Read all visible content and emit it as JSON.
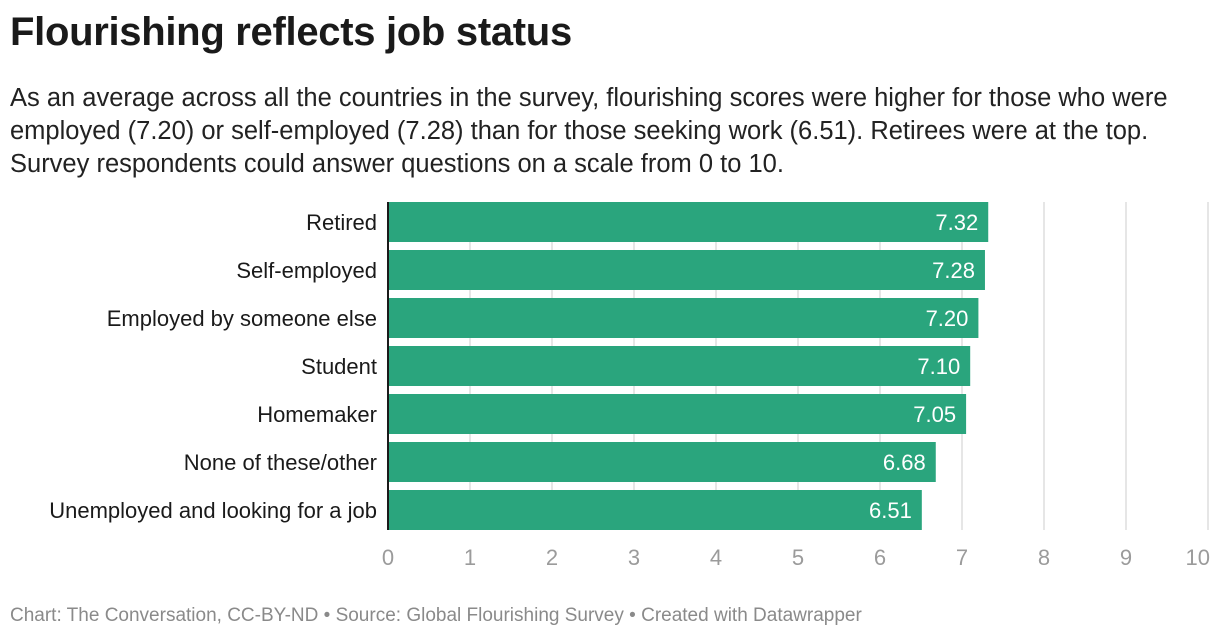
{
  "title": "Flourishing reflects job status",
  "subtitle": "As an average across all the countries in the survey, flourishing scores were higher for those who were employed (7.20) or self-employed (7.28) than for those seeking work (6.51). Retirees were at the top. Survey respondents could answer questions on a scale from 0 to 10.",
  "footer": {
    "chart_credit": "Chart: The Conversation, CC-BY-ND",
    "separator": " • ",
    "source": "Source: Global Flourishing Survey",
    "created_with": "Created with Datawrapper"
  },
  "chart_data": {
    "type": "bar",
    "orientation": "horizontal",
    "categories": [
      "Retired",
      "Self-employed",
      "Employed by someone else",
      "Student",
      "Homemaker",
      "None of these/other",
      "Unemployed and looking for a job"
    ],
    "values": [
      7.32,
      7.28,
      7.2,
      7.1,
      7.05,
      6.68,
      6.51
    ],
    "value_labels": [
      "7.32",
      "7.28",
      "7.20",
      "7.10",
      "7.05",
      "6.68",
      "6.51"
    ],
    "xlim": [
      0,
      10
    ],
    "xticks": [
      "0",
      "1",
      "2",
      "3",
      "4",
      "5",
      "6",
      "7",
      "8",
      "9",
      "10"
    ],
    "grid": true,
    "colors": {
      "bar": "#2aa57d",
      "grid": "#dedede",
      "tick": "#9b9b9b",
      "axis": "#1a1a1a"
    }
  }
}
